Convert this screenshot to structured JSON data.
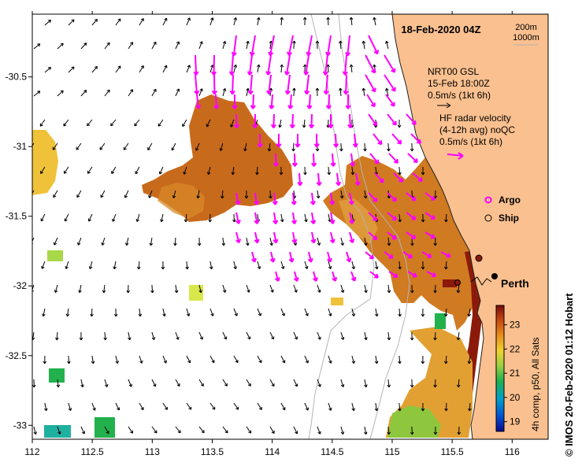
{
  "map": {
    "date_title": "18-Feb-2020 04Z",
    "contour_legend": [
      "200m",
      "1000m"
    ],
    "x_ticks": [
      "112",
      "112.5",
      "113",
      "113.5",
      "114",
      "114.5",
      "115",
      "115.5",
      "116"
    ],
    "y_ticks": [
      "-30.5",
      "-31",
      "-31.5",
      "-32",
      "-32.5",
      "-33"
    ],
    "lon_range": [
      112,
      116.3
    ],
    "lat_range": [
      -33.1,
      -30.05
    ]
  },
  "wind_legend": {
    "line1": "NRT00 GSL",
    "line2": "15-Feb 18:00Z",
    "line3": "0.5m/s (1kt 6h)",
    "arrow_color": "#000000"
  },
  "hf_legend": {
    "line1": "HF radar velocity",
    "line2": "(4-12h avg) noQC",
    "line3": "0.5m/s (1kt 6h)",
    "arrow_color": "#ff00ff"
  },
  "markers": {
    "argo_label": "Argo",
    "argo_color": "#ff00ff",
    "ship_label": "Ship",
    "city_label": "Perth"
  },
  "colorbar": {
    "ticks": [
      "23",
      "22",
      "21",
      "20",
      "19"
    ],
    "range": [
      18.6,
      23.8
    ],
    "caption": "4h comp, p50, All Sats"
  },
  "credit": "© IMOS 20-Feb-2020 01:12 Hobart",
  "colors": {
    "land": "#fac08f",
    "hf_arrow": "#ff00ff",
    "contour": "#b4b4b4"
  }
}
